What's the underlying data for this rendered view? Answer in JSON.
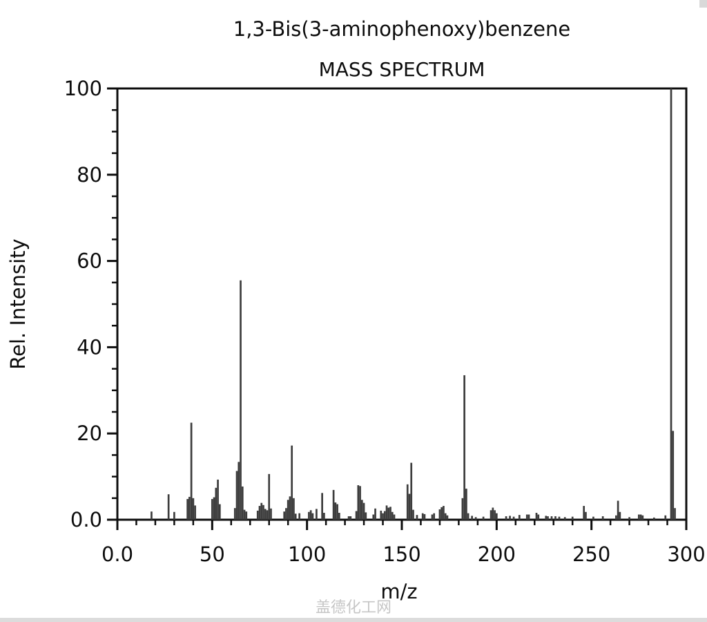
{
  "page": {
    "title": "1,3-Bis(3-aminophenoxy)benzene",
    "subtitle": "MASS SPECTRUM",
    "watermark": "盖德化工网"
  },
  "chart_data": {
    "type": "bar",
    "title": "1,3-Bis(3-aminophenoxy)benzene",
    "subtitle": "MASS SPECTRUM",
    "xlabel": "m/z",
    "ylabel": "Rel. Intensity",
    "xlim": [
      0,
      300
    ],
    "ylim": [
      0,
      100
    ],
    "x_major_ticks": [
      0,
      50,
      100,
      150,
      200,
      250,
      300
    ],
    "x_major_tick_labels": [
      "0.0",
      "50",
      "100",
      "150",
      "200",
      "250",
      "300"
    ],
    "x_minor_tick_step": 10,
    "y_major_ticks": [
      0,
      20,
      40,
      60,
      80,
      100
    ],
    "y_major_tick_labels": [
      "0.0",
      "20",
      "40",
      "60",
      "80",
      "100"
    ],
    "y_minor_tick_step": 5,
    "grid": false,
    "legend": null,
    "bar_color": "#3d3d3d",
    "axis_color": "#0d0d0d",
    "peaks_format": [
      "mz",
      "rel_intensity"
    ],
    "peaks": [
      [
        18,
        1.9
      ],
      [
        27,
        5.9
      ],
      [
        30,
        1.8
      ],
      [
        37,
        4.8
      ],
      [
        38,
        5.3
      ],
      [
        39,
        22.5
      ],
      [
        40,
        5.0
      ],
      [
        41,
        3.3
      ],
      [
        50,
        4.8
      ],
      [
        51,
        5.2
      ],
      [
        52,
        7.4
      ],
      [
        53,
        9.3
      ],
      [
        54,
        3.6
      ],
      [
        62,
        2.7
      ],
      [
        63,
        11.3
      ],
      [
        64,
        13.4
      ],
      [
        65,
        55.5
      ],
      [
        66,
        7.7
      ],
      [
        67,
        2.3
      ],
      [
        68,
        1.9
      ],
      [
        74,
        2.1
      ],
      [
        75,
        3.2
      ],
      [
        76,
        3.9
      ],
      [
        77,
        3.4
      ],
      [
        78,
        2.5
      ],
      [
        79,
        2.2
      ],
      [
        80,
        10.6
      ],
      [
        81,
        2.6
      ],
      [
        88,
        1.9
      ],
      [
        89,
        2.7
      ],
      [
        90,
        4.6
      ],
      [
        91,
        5.4
      ],
      [
        92,
        17.2
      ],
      [
        93,
        5.0
      ],
      [
        94,
        1.4
      ],
      [
        96,
        1.5
      ],
      [
        101,
        1.8
      ],
      [
        102,
        2.2
      ],
      [
        103,
        1.5
      ],
      [
        105,
        2.5
      ],
      [
        108,
        6.2
      ],
      [
        109,
        1.6
      ],
      [
        114,
        6.9
      ],
      [
        115,
        4.0
      ],
      [
        116,
        3.6
      ],
      [
        117,
        1.6
      ],
      [
        122,
        0.8
      ],
      [
        123,
        0.8
      ],
      [
        126,
        2.0
      ],
      [
        127,
        8.0
      ],
      [
        128,
        7.8
      ],
      [
        129,
        4.6
      ],
      [
        130,
        3.9
      ],
      [
        131,
        1.7
      ],
      [
        135,
        1.2
      ],
      [
        136,
        2.6
      ],
      [
        139,
        2.1
      ],
      [
        140,
        1.5
      ],
      [
        141,
        2.0
      ],
      [
        142,
        3.3
      ],
      [
        143,
        2.8
      ],
      [
        144,
        3.0
      ],
      [
        145,
        1.8
      ],
      [
        146,
        1.2
      ],
      [
        153,
        8.2
      ],
      [
        154,
        6.0
      ],
      [
        155,
        13.2
      ],
      [
        156,
        2.3
      ],
      [
        158,
        1.1
      ],
      [
        161,
        1.5
      ],
      [
        162,
        1.3
      ],
      [
        166,
        1.2
      ],
      [
        167,
        1.5
      ],
      [
        170,
        2.4
      ],
      [
        171,
        2.9
      ],
      [
        172,
        3.2
      ],
      [
        173,
        1.5
      ],
      [
        174,
        1.0
      ],
      [
        182,
        5.0
      ],
      [
        183,
        33.5
      ],
      [
        184,
        7.2
      ],
      [
        185,
        1.5
      ],
      [
        187,
        0.9
      ],
      [
        189,
        0.6
      ],
      [
        193,
        0.7
      ],
      [
        197,
        2.2
      ],
      [
        198,
        2.8
      ],
      [
        199,
        2.2
      ],
      [
        200,
        1.5
      ],
      [
        205,
        0.8
      ],
      [
        207,
        0.9
      ],
      [
        209,
        0.7
      ],
      [
        212,
        1.1
      ],
      [
        216,
        1.2
      ],
      [
        217,
        1.2
      ],
      [
        221,
        1.6
      ],
      [
        222,
        1.2
      ],
      [
        226,
        0.9
      ],
      [
        227,
        0.8
      ],
      [
        229,
        0.8
      ],
      [
        231,
        0.8
      ],
      [
        233,
        0.7
      ],
      [
        236,
        0.6
      ],
      [
        240,
        0.7
      ],
      [
        246,
        3.2
      ],
      [
        247,
        1.8
      ],
      [
        251,
        0.7
      ],
      [
        256,
        0.8
      ],
      [
        263,
        1.0
      ],
      [
        264,
        4.4
      ],
      [
        265,
        1.8
      ],
      [
        270,
        0.6
      ],
      [
        275,
        1.2
      ],
      [
        276,
        1.2
      ],
      [
        277,
        1.0
      ],
      [
        283,
        0.5
      ],
      [
        289,
        1.0
      ],
      [
        292,
        100
      ],
      [
        293,
        20.6
      ],
      [
        294,
        2.7
      ]
    ]
  }
}
